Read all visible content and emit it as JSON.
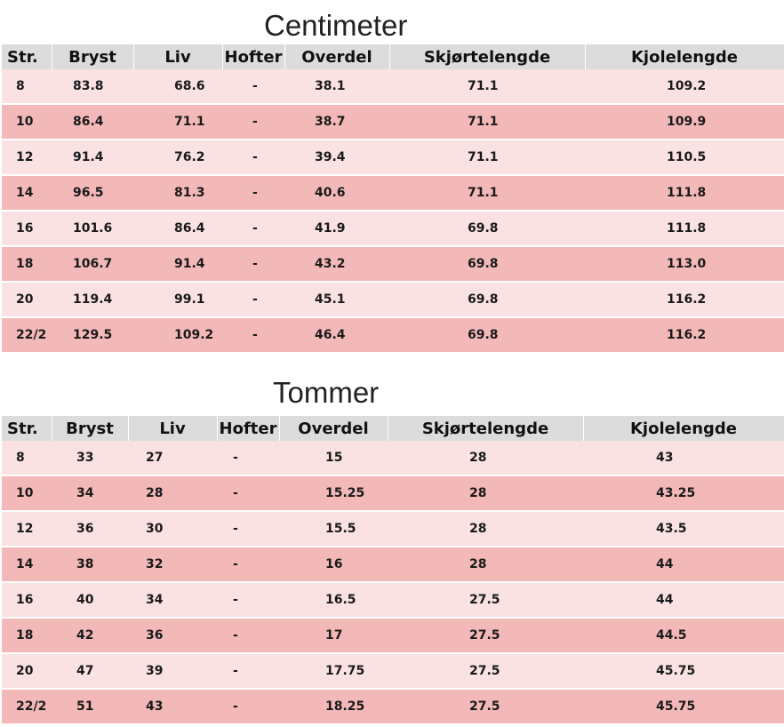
{
  "centimeter": {
    "title": "Centimeter",
    "headers": [
      "Str.",
      "Bryst",
      "Liv",
      "Hofter",
      "Overdel",
      "Skjørtelengde",
      "Kjolelengde"
    ],
    "rows": [
      [
        "8",
        "83.8",
        "68.6",
        "-",
        "38.1",
        "71.1",
        "109.2"
      ],
      [
        "10",
        "86.4",
        "71.1",
        "-",
        "38.7",
        "71.1",
        "109.9"
      ],
      [
        "12",
        "91.4",
        "76.2",
        "-",
        "39.4",
        "71.1",
        "110.5"
      ],
      [
        "14",
        "96.5",
        "81.3",
        "-",
        "40.6",
        "71.1",
        "111.8"
      ],
      [
        "16",
        "101.6",
        "86.4",
        "-",
        "41.9",
        "69.8",
        "111.8"
      ],
      [
        "18",
        "106.7",
        "91.4",
        "-",
        "43.2",
        "69.8",
        "113.0"
      ],
      [
        "20",
        "119.4",
        "99.1",
        "-",
        "45.1",
        "69.8",
        "116.2"
      ],
      [
        "22/2",
        "129.5",
        "109.2",
        "-",
        "46.4",
        "69.8",
        "116.2"
      ]
    ]
  },
  "tommer": {
    "title": "Tommer",
    "headers": [
      "Str.",
      "Bryst",
      "Liv",
      "Hofter",
      "Overdel",
      "Skjørtelengde",
      "Kjolelengde"
    ],
    "rows": [
      [
        "8",
        "33",
        "27",
        "-",
        "15",
        "28",
        "43"
      ],
      [
        "10",
        "34",
        "28",
        "-",
        "15.25",
        "28",
        "43.25"
      ],
      [
        "12",
        "36",
        "30",
        "-",
        "15.5",
        "28",
        "43.5"
      ],
      [
        "14",
        "38",
        "32",
        "-",
        "16",
        "28",
        "44"
      ],
      [
        "16",
        "40",
        "34",
        "-",
        "16.5",
        "27.5",
        "44"
      ],
      [
        "18",
        "42",
        "36",
        "-",
        "17",
        "27.5",
        "44.5"
      ],
      [
        "20",
        "47",
        "39",
        "-",
        "17.75",
        "27.5",
        "45.75"
      ],
      [
        "22/2",
        "51",
        "43",
        "-",
        "18.25",
        "27.5",
        "45.75"
      ]
    ]
  },
  "colors": {
    "header_bg": "#dcdcdc",
    "row_light": "#fae1e2",
    "row_dark": "#f3b8b8"
  }
}
